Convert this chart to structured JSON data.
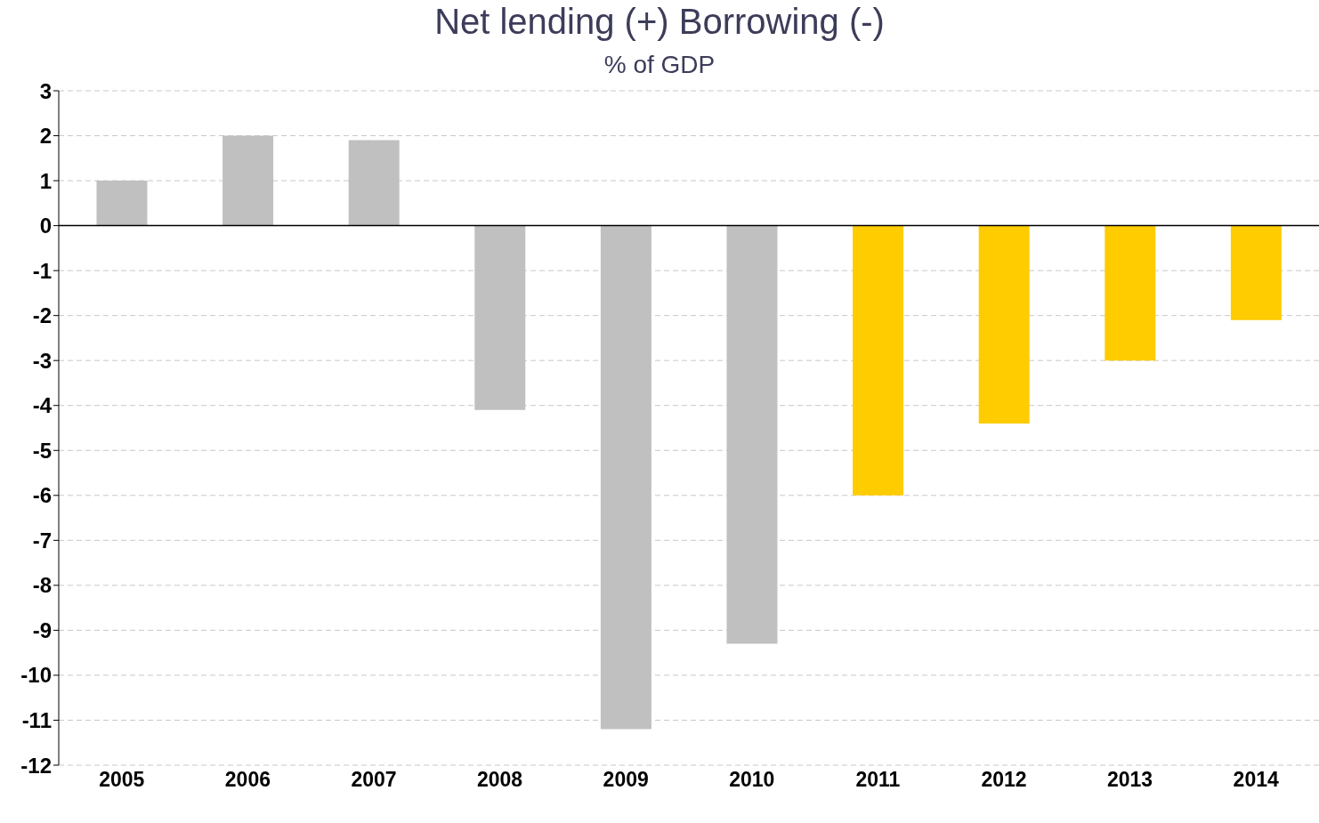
{
  "chart_data": {
    "type": "bar",
    "title": "Net lending (+) Borrowing (-)",
    "subtitle": "% of GDP",
    "categories": [
      "2005",
      "2006",
      "2007",
      "2008",
      "2009",
      "2010",
      "2011",
      "2012",
      "2013",
      "2014"
    ],
    "values": [
      1.0,
      2.0,
      1.9,
      -4.1,
      -11.2,
      -9.3,
      -6.0,
      -4.4,
      -3.0,
      -2.1
    ],
    "colors": [
      "#c0c0c0",
      "#c0c0c0",
      "#c0c0c0",
      "#c0c0c0",
      "#c0c0c0",
      "#c0c0c0",
      "#ffcc00",
      "#ffcc00",
      "#ffcc00",
      "#ffcc00"
    ],
    "ylim": [
      -12,
      3
    ],
    "yticks": [
      -12,
      -11,
      -10,
      -9,
      -8,
      -7,
      -6,
      -5,
      -4,
      -3,
      -2,
      -1,
      0,
      1,
      2,
      3
    ],
    "grid": "y",
    "legend": false
  }
}
